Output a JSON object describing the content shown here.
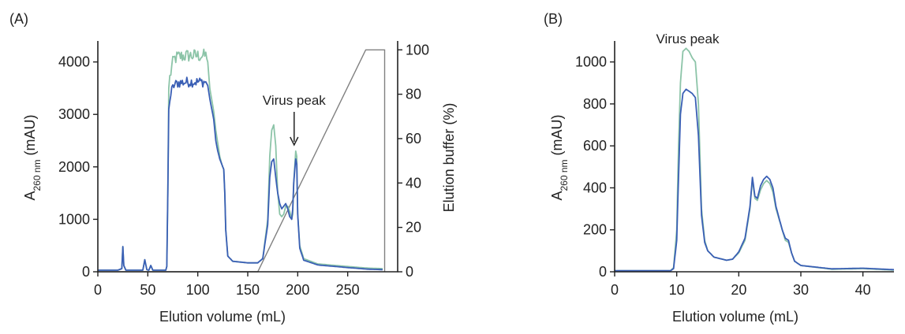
{
  "colors": {
    "a260_blue": "#3a5fb5",
    "a260_green": "#8cc4a8",
    "gradient_line": "#808080",
    "axis": "#222222"
  },
  "chart_data": [
    {
      "panel_label": "(A)",
      "type": "line",
      "xlabel": "Elution volume (mL)",
      "ylabel_main": "A",
      "ylabel_sub": "260 nm",
      "ylabel_unit": " (mAU)",
      "y2label": "Elution buffer (%)",
      "xlim": [
        0,
        300
      ],
      "ylim": [
        0,
        4400
      ],
      "y2lim": [
        0,
        104
      ],
      "x_ticks": [
        "0",
        "50",
        "100",
        "150",
        "200",
        "250"
      ],
      "y_ticks": [
        "0",
        "1000",
        "2000",
        "3000",
        "4000"
      ],
      "y2_ticks": [
        "0",
        "20",
        "40",
        "60",
        "80",
        "100"
      ],
      "annotation": {
        "text": "Virus peak",
        "x": 198,
        "y": 2250
      },
      "series": [
        {
          "color": "#8cc4a8",
          "noise": 130,
          "values": [
            [
              0,
              30
            ],
            [
              20,
              30
            ],
            [
              24,
              60
            ],
            [
              25,
              480
            ],
            [
              26,
              120
            ],
            [
              28,
              30
            ],
            [
              45,
              30
            ],
            [
              47,
              230
            ],
            [
              49,
              40
            ],
            [
              51,
              30
            ],
            [
              53,
              120
            ],
            [
              55,
              30
            ],
            [
              68,
              30
            ],
            [
              69,
              100
            ],
            [
              70,
              1500
            ],
            [
              71,
              3500
            ],
            [
              72,
              3700
            ],
            [
              74,
              3900
            ],
            [
              76,
              4050
            ],
            [
              80,
              4100
            ],
            [
              90,
              4120
            ],
            [
              100,
              4120
            ],
            [
              108,
              4120
            ],
            [
              110,
              4000
            ],
            [
              112,
              3500
            ],
            [
              116,
              3050
            ],
            [
              118,
              2700
            ],
            [
              120,
              2450
            ],
            [
              122,
              2200
            ],
            [
              124,
              2050
            ],
            [
              126,
              1950
            ],
            [
              127,
              1500
            ],
            [
              128,
              800
            ],
            [
              130,
              300
            ],
            [
              135,
              200
            ],
            [
              150,
              170
            ],
            [
              160,
              170
            ],
            [
              165,
              250
            ],
            [
              170,
              1000
            ],
            [
              172,
              2200
            ],
            [
              174,
              2700
            ],
            [
              176,
              2800
            ],
            [
              178,
              2400
            ],
            [
              180,
              1500
            ],
            [
              182,
              1100
            ],
            [
              184,
              1050
            ],
            [
              186,
              1100
            ],
            [
              188,
              1250
            ],
            [
              190,
              1250
            ],
            [
              192,
              1150
            ],
            [
              194,
              1000
            ],
            [
              195,
              1100
            ],
            [
              196,
              1700
            ],
            [
              198,
              2300
            ],
            [
              199,
              2200
            ],
            [
              200,
              1100
            ],
            [
              202,
              500
            ],
            [
              206,
              250
            ],
            [
              220,
              150
            ],
            [
              250,
              100
            ],
            [
              270,
              70
            ],
            [
              285,
              60
            ]
          ]
        },
        {
          "color": "#3a5fb5",
          "noise": 100,
          "values": [
            [
              0,
              30
            ],
            [
              20,
              30
            ],
            [
              24,
              60
            ],
            [
              25,
              480
            ],
            [
              26,
              120
            ],
            [
              28,
              30
            ],
            [
              45,
              30
            ],
            [
              47,
              230
            ],
            [
              49,
              40
            ],
            [
              51,
              30
            ],
            [
              53,
              120
            ],
            [
              55,
              30
            ],
            [
              68,
              30
            ],
            [
              69,
              100
            ],
            [
              70,
              1500
            ],
            [
              71,
              3100
            ],
            [
              72,
              3300
            ],
            [
              74,
              3450
            ],
            [
              76,
              3550
            ],
            [
              80,
              3600
            ],
            [
              90,
              3620
            ],
            [
              100,
              3620
            ],
            [
              108,
              3620
            ],
            [
              110,
              3550
            ],
            [
              112,
              3300
            ],
            [
              116,
              2900
            ],
            [
              118,
              2500
            ],
            [
              120,
              2300
            ],
            [
              122,
              2150
            ],
            [
              124,
              2050
            ],
            [
              126,
              1950
            ],
            [
              127,
              1500
            ],
            [
              128,
              800
            ],
            [
              130,
              300
            ],
            [
              135,
              200
            ],
            [
              150,
              170
            ],
            [
              160,
              170
            ],
            [
              165,
              250
            ],
            [
              170,
              900
            ],
            [
              172,
              1800
            ],
            [
              174,
              2100
            ],
            [
              176,
              2150
            ],
            [
              178,
              1800
            ],
            [
              180,
              1500
            ],
            [
              182,
              1300
            ],
            [
              184,
              1200
            ],
            [
              186,
              1250
            ],
            [
              188,
              1300
            ],
            [
              190,
              1200
            ],
            [
              192,
              1050
            ],
            [
              194,
              1000
            ],
            [
              195,
              1200
            ],
            [
              196,
              1700
            ],
            [
              198,
              2150
            ],
            [
              199,
              2050
            ],
            [
              200,
              1100
            ],
            [
              202,
              450
            ],
            [
              206,
              220
            ],
            [
              220,
              130
            ],
            [
              250,
              80
            ],
            [
              270,
              50
            ],
            [
              285,
              40
            ]
          ]
        }
      ],
      "gradient": [
        [
          0,
          0
        ],
        [
          160,
          0
        ],
        [
          268,
          100
        ],
        [
          287,
          100
        ],
        [
          287,
          0
        ]
      ]
    },
    {
      "panel_label": "(B)",
      "type": "line",
      "xlabel": "Elution volume (mL)",
      "ylabel_main": "A",
      "ylabel_sub": "260 nm",
      "ylabel_unit": " (mAU)",
      "xlim": [
        0,
        45
      ],
      "ylim": [
        0,
        1100
      ],
      "x_ticks": [
        "0",
        "10",
        "20",
        "30",
        "40"
      ],
      "y_ticks": [
        "0",
        "200",
        "400",
        "600",
        "800",
        "1000"
      ],
      "annotation": {
        "text": "Virus peak",
        "x": 11.5,
        "y": 1065
      },
      "series": [
        {
          "color": "#8cc4a8",
          "noise": 0,
          "values": [
            [
              0,
              5
            ],
            [
              9,
              5
            ],
            [
              9.5,
              20
            ],
            [
              10,
              200
            ],
            [
              10.3,
              600
            ],
            [
              10.6,
              900
            ],
            [
              11,
              1050
            ],
            [
              11.5,
              1065
            ],
            [
              12,
              1050
            ],
            [
              12.5,
              1020
            ],
            [
              13,
              1000
            ],
            [
              13.5,
              800
            ],
            [
              14,
              300
            ],
            [
              14.5,
              150
            ],
            [
              15,
              100
            ],
            [
              16,
              70
            ],
            [
              18,
              55
            ],
            [
              19,
              60
            ],
            [
              20,
              90
            ],
            [
              21,
              150
            ],
            [
              21.8,
              300
            ],
            [
              22.2,
              440
            ],
            [
              22.6,
              350
            ],
            [
              23,
              340
            ],
            [
              23.5,
              390
            ],
            [
              24,
              420
            ],
            [
              24.5,
              435
            ],
            [
              25,
              420
            ],
            [
              25.5,
              380
            ],
            [
              26,
              300
            ],
            [
              27,
              200
            ],
            [
              27.5,
              150
            ],
            [
              28,
              140
            ],
            [
              28.5,
              90
            ],
            [
              29,
              50
            ],
            [
              30,
              30
            ],
            [
              35,
              12
            ],
            [
              40,
              15
            ],
            [
              45,
              8
            ]
          ]
        },
        {
          "color": "#3a5fb5",
          "noise": 0,
          "values": [
            [
              0,
              5
            ],
            [
              9,
              5
            ],
            [
              9.5,
              15
            ],
            [
              10,
              150
            ],
            [
              10.3,
              450
            ],
            [
              10.6,
              750
            ],
            [
              11,
              850
            ],
            [
              11.5,
              870
            ],
            [
              12,
              860
            ],
            [
              12.5,
              850
            ],
            [
              13,
              830
            ],
            [
              13.5,
              650
            ],
            [
              14,
              270
            ],
            [
              14.5,
              140
            ],
            [
              15,
              100
            ],
            [
              16,
              70
            ],
            [
              18,
              55
            ],
            [
              19,
              60
            ],
            [
              20,
              95
            ],
            [
              21,
              160
            ],
            [
              21.8,
              310
            ],
            [
              22.2,
              450
            ],
            [
              22.6,
              360
            ],
            [
              23,
              350
            ],
            [
              23.5,
              410
            ],
            [
              24,
              440
            ],
            [
              24.5,
              455
            ],
            [
              25,
              440
            ],
            [
              25.5,
              400
            ],
            [
              26,
              310
            ],
            [
              27,
              200
            ],
            [
              27.5,
              160
            ],
            [
              28,
              150
            ],
            [
              28.5,
              90
            ],
            [
              29,
              50
            ],
            [
              30,
              30
            ],
            [
              35,
              14
            ],
            [
              40,
              17
            ],
            [
              45,
              10
            ]
          ]
        }
      ]
    }
  ]
}
